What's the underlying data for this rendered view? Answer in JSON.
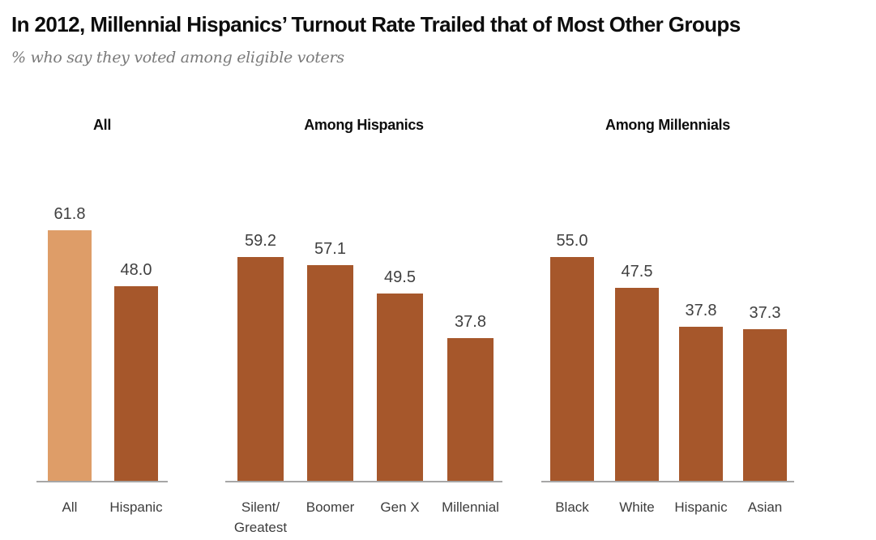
{
  "header": {
    "title": "In 2012, Millennial Hispanics’ Turnout Rate Trailed that of Most Other Groups",
    "subtitle": "% who say they voted among eligible voters"
  },
  "colors": {
    "highlight": "#DE9D68",
    "primary": "#A6572B",
    "axis_line": "#A6A6A6",
    "label_text": "#404040"
  },
  "chart_data": {
    "type": "bar",
    "unit": "% who say they voted among eligible voters",
    "title": "In 2012, Millennial Hispanics’ Turnout Rate Trailed that of Most Other Groups",
    "grid": false,
    "legend": "none",
    "value_labels": "above bars, one decimal",
    "groups": [
      {
        "header": "All",
        "categories": [
          "All",
          "Hispanic"
        ],
        "values": [
          61.8,
          48.0
        ],
        "styles": [
          "highlight",
          "primary"
        ]
      },
      {
        "header": "Among Hispanics",
        "categories": [
          "Silent/\nGreatest",
          "Boomer",
          "Gen X",
          "Millennial"
        ],
        "values": [
          59.2,
          57.1,
          49.5,
          37.8
        ],
        "styles": [
          "primary",
          "primary",
          "primary",
          "primary"
        ]
      },
      {
        "header": "Among Millennials",
        "categories": [
          "Black",
          "White",
          "Hispanic",
          "Asian"
        ],
        "values": [
          55.0,
          47.5,
          37.8,
          37.3
        ],
        "styles": [
          "primary",
          "primary",
          "primary",
          "primary"
        ]
      }
    ]
  }
}
